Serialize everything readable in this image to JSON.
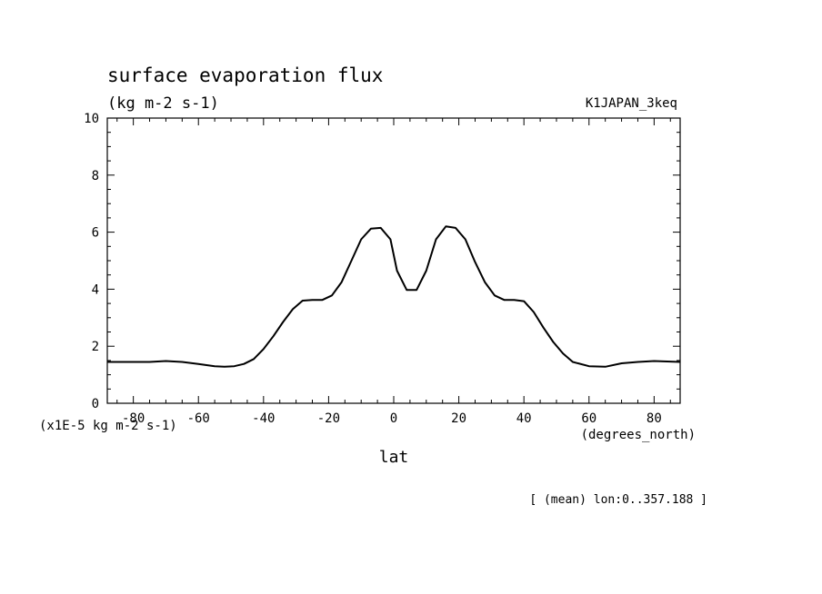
{
  "chart_data": {
    "type": "line",
    "title": "surface evaporation flux",
    "units_label": "(kg m-2 s-1)",
    "dataset_label": "K1JAPAN_3keq",
    "scale_label": "(x1E-5 kg m-2 s-1)",
    "xunits_label": "(degrees_north)",
    "xlabel": "lat",
    "footnote": "[ (mean) lon:0..357.188 ]",
    "xlim": [
      -88,
      88
    ],
    "ylim": [
      0,
      10
    ],
    "xticks": [
      -80,
      -60,
      -40,
      -20,
      0,
      20,
      40,
      60,
      80
    ],
    "yticks": [
      0,
      2,
      4,
      6,
      8,
      10
    ],
    "grid": false,
    "series": [
      {
        "x": [
          -88,
          -80,
          -75,
          -70,
          -65,
          -60,
          -55,
          -52,
          -49,
          -46,
          -43,
          -40,
          -37,
          -34,
          -31,
          -28,
          -25,
          -22,
          -19,
          -16,
          -13,
          -10,
          -7,
          -4,
          -1,
          1,
          4,
          7,
          10,
          13,
          16,
          19,
          22,
          25,
          28,
          31,
          34,
          37,
          40,
          43,
          46,
          49,
          52,
          55,
          60,
          65,
          70,
          75,
          80,
          88
        ],
        "y": [
          1.45,
          1.45,
          1.45,
          1.48,
          1.45,
          1.38,
          1.3,
          1.28,
          1.3,
          1.38,
          1.55,
          1.9,
          2.35,
          2.85,
          3.3,
          3.6,
          3.62,
          3.62,
          3.78,
          4.25,
          5.0,
          5.75,
          6.12,
          6.15,
          5.75,
          4.65,
          3.97,
          3.97,
          4.65,
          5.75,
          6.2,
          6.15,
          5.75,
          4.95,
          4.25,
          3.78,
          3.62,
          3.62,
          3.58,
          3.2,
          2.65,
          2.15,
          1.75,
          1.45,
          1.3,
          1.28,
          1.4,
          1.45,
          1.48,
          1.45
        ]
      }
    ]
  }
}
